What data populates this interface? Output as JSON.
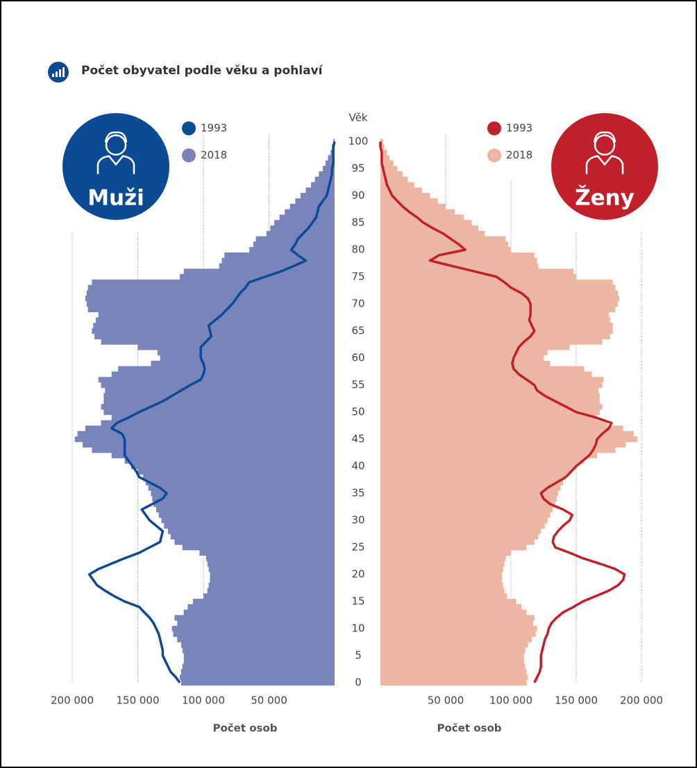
{
  "chart_data": {
    "type": "pyramid",
    "title": "Počet obyvatel podle věku a pohlaví",
    "ylabel": "Věk",
    "categories": [
      0,
      1,
      2,
      3,
      4,
      5,
      6,
      7,
      8,
      9,
      10,
      11,
      12,
      13,
      14,
      15,
      16,
      17,
      18,
      19,
      20,
      21,
      22,
      23,
      24,
      25,
      26,
      27,
      28,
      29,
      30,
      31,
      32,
      33,
      34,
      35,
      36,
      37,
      38,
      39,
      40,
      41,
      42,
      43,
      44,
      45,
      46,
      47,
      48,
      49,
      50,
      51,
      52,
      53,
      54,
      55,
      56,
      57,
      58,
      59,
      60,
      61,
      62,
      63,
      64,
      65,
      66,
      67,
      68,
      69,
      70,
      71,
      72,
      73,
      74,
      75,
      76,
      77,
      78,
      79,
      80,
      81,
      82,
      83,
      84,
      85,
      86,
      87,
      88,
      89,
      90,
      91,
      92,
      93,
      94,
      95,
      96,
      97,
      98,
      99,
      100
    ],
    "ylim": [
      0,
      100
    ],
    "yticks": [
      0,
      5,
      10,
      15,
      20,
      25,
      30,
      35,
      40,
      45,
      50,
      55,
      60,
      65,
      70,
      75,
      80,
      85,
      90,
      95,
      100
    ],
    "panels": [
      {
        "name": "Muži",
        "side": "left",
        "xlabel": "Počet osob",
        "xlim": [
          0,
          200000
        ],
        "xticks": [
          {
            "value": 200000,
            "label": "200 000"
          },
          {
            "value": 150000,
            "label": "150 000"
          },
          {
            "value": 100000,
            "label": "100 000"
          },
          {
            "value": 50000,
            "label": "50 000"
          }
        ],
        "series": [
          {
            "name": "1993",
            "kind": "line",
            "color": "#0d4a94",
            "values": [
              118000,
              121000,
              125000,
              127000,
              129000,
              131000,
              131000,
              132000,
              133000,
              134000,
              136000,
              138000,
              141000,
              145000,
              149000,
              160000,
              168000,
              175000,
              181000,
              184000,
              187000,
              180000,
              170000,
              160000,
              149000,
              141000,
              133000,
              132000,
              131000,
              136000,
              141000,
              144000,
              147000,
              139000,
              131000,
              128000,
              133000,
              141000,
              149000,
              151000,
              154000,
              157000,
              160000,
              160000,
              160000,
              160000,
              162000,
              170000,
              166000,
              157000,
              149000,
              140000,
              131000,
              124000,
              117000,
              110000,
              102000,
              100000,
              99000,
              100000,
              102000,
              102000,
              102000,
              98000,
              94000,
              95000,
              96000,
              91000,
              86000,
              82000,
              78000,
              75000,
              72000,
              68000,
              65000,
              53000,
              41000,
              31000,
              22000,
              28000,
              33000,
              30000,
              28000,
              24000,
              20000,
              17000,
              14000,
              13000,
              12000,
              9000,
              6000,
              5000,
              4000,
              3000,
              2000,
              2000,
              1000,
              1000,
              1000,
              1000,
              0
            ]
          },
          {
            "name": "2018",
            "kind": "bar",
            "color": "#7884ba",
            "values": [
              117000,
              118000,
              117000,
              116000,
              115000,
              115000,
              116000,
              117000,
              120000,
              123000,
              124000,
              120000,
              122000,
              115000,
              112000,
              108000,
              100000,
              97000,
              96000,
              95000,
              95000,
              96000,
              97000,
              98000,
              103000,
              116000,
              122000,
              125000,
              127000,
              130000,
              132000,
              134000,
              136000,
              138000,
              139000,
              140000,
              142000,
              144000,
              146000,
              150000,
              155000,
              160000,
              170000,
              185000,
              192000,
              198000,
              196000,
              190000,
              178000,
              170000,
              176000,
              178000,
              176000,
              176000,
              175000,
              178000,
              180000,
              170000,
              165000,
              140000,
              133000,
              135000,
              150000,
              178000,
              183000,
              185000,
              184000,
              182000,
              180000,
              188000,
              189000,
              190000,
              189000,
              188000,
              185000,
              118000,
              115000,
              88000,
              86000,
              84000,
              65000,
              62000,
              60000,
              52000,
              49000,
              46000,
              42000,
              38000,
              34000,
              30000,
              26000,
              22000,
              18000,
              15000,
              12000,
              9000,
              7000,
              5000,
              3000,
              2000,
              1000
            ]
          }
        ]
      },
      {
        "name": "Ženy",
        "side": "right",
        "xlabel": "Počet osob",
        "xlim": [
          0,
          200000
        ],
        "xticks": [
          {
            "value": 50000,
            "label": "50 000"
          },
          {
            "value": 100000,
            "label": "100 000"
          },
          {
            "value": 150000,
            "label": "150 000"
          },
          {
            "value": 200000,
            "label": "200 000"
          }
        ],
        "series": [
          {
            "name": "1993",
            "kind": "line",
            "color": "#c0202a",
            "values": [
              118000,
              120000,
              122000,
              123000,
              123000,
              123000,
              124000,
              125000,
              126000,
              128000,
              129000,
              131000,
              135000,
              140000,
              148000,
              155000,
              165000,
              175000,
              182000,
              186000,
              187000,
              180000,
              168000,
              155000,
              145000,
              134000,
              132000,
              133000,
              136000,
              140000,
              145000,
              147000,
              140000,
              130000,
              125000,
              123000,
              128000,
              135000,
              142000,
              146000,
              150000,
              155000,
              160000,
              163000,
              165000,
              166000,
              170000,
              175000,
              177000,
              165000,
              150000,
              142000,
              134000,
              126000,
              120000,
              118000,
              112000,
              106000,
              102000,
              101000,
              102000,
              104000,
              106000,
              110000,
              115000,
              118000,
              116000,
              114000,
              115000,
              115000,
              115000,
              113000,
              108000,
              100000,
              95000,
              89000,
              72000,
              55000,
              38000,
              45000,
              65000,
              60000,
              54000,
              48000,
              40000,
              33000,
              28000,
              22000,
              17000,
              13000,
              9000,
              7000,
              5000,
              4000,
              3000,
              2000,
              1000,
              1000,
              1000,
              0,
              0
            ]
          },
          {
            "name": "2018",
            "kind": "bar",
            "color": "#edb6a2",
            "values": [
              112000,
              113000,
              112000,
              111000,
              110000,
              110000,
              111000,
              113000,
              116000,
              119000,
              120000,
              117000,
              118000,
              112000,
              108000,
              104000,
              97000,
              95000,
              94000,
              93000,
              93000,
              94000,
              95000,
              96000,
              100000,
              112000,
              118000,
              121000,
              123000,
              126000,
              128000,
              130000,
              132000,
              134000,
              135000,
              136000,
              138000,
              140000,
              142000,
              146000,
              150000,
              156000,
              166000,
              180000,
              188000,
              197000,
              194000,
              186000,
              174000,
              166000,
              168000,
              170000,
              168000,
              168000,
              167000,
              170000,
              171000,
              162000,
              156000,
              130000,
              125000,
              128000,
              145000,
              170000,
              176000,
              178000,
              178000,
              176000,
              175000,
              180000,
              182000,
              183000,
              182000,
              180000,
              178000,
              150000,
              148000,
              121000,
              120000,
              118000,
              100000,
              98000,
              96000,
              80000,
              75000,
              70000,
              64000,
              57000,
              50000,
              44000,
              38000,
              32000,
              26000,
              21000,
              17000,
              13000,
              10000,
              7000,
              5000,
              3000,
              2000
            ]
          }
        ]
      }
    ]
  }
}
